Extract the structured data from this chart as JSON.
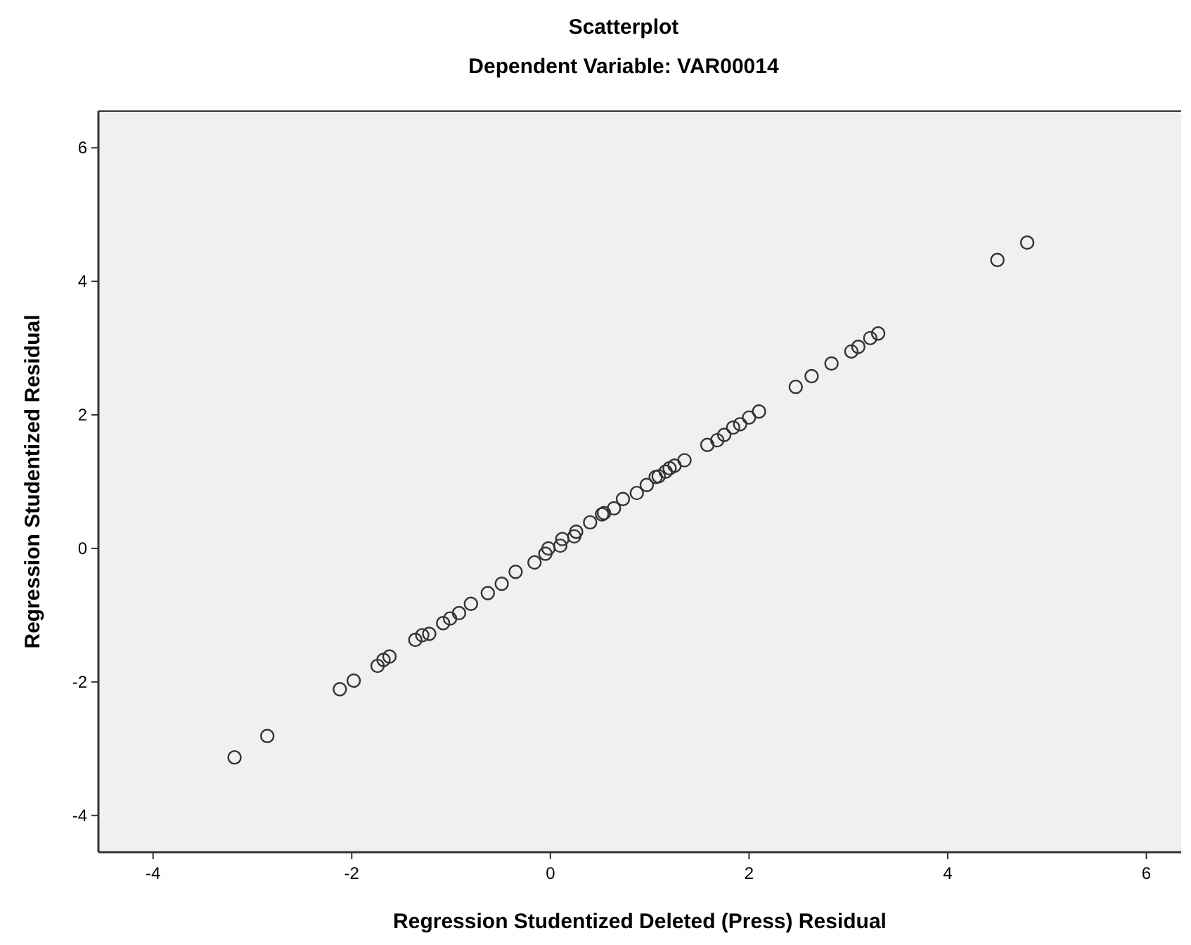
{
  "chart_data": {
    "type": "scatter",
    "title": "Scatterplot",
    "subtitle": "Dependent Variable: VAR00014",
    "xlabel": "Regression Studentized Deleted (Press) Residual",
    "ylabel": "Regression Studentized Residual",
    "xlim": [
      -4.55,
      6.35
    ],
    "ylim": [
      -4.55,
      6.55
    ],
    "xticks": [
      -4,
      -2,
      0,
      2,
      4,
      6
    ],
    "yticks": [
      -4,
      -2,
      0,
      2,
      4,
      6
    ],
    "grid": false,
    "marker": "circle",
    "series": [
      {
        "color": "#333333",
        "x": [
          -3.18,
          -2.85,
          -2.12,
          -1.98,
          -1.74,
          -1.68,
          -1.62,
          -1.36,
          -1.29,
          -1.22,
          -1.08,
          -1.01,
          -0.92,
          -0.8,
          -0.63,
          -0.49,
          -0.35,
          -0.16,
          -0.05,
          0.1,
          0.24,
          0.4,
          0.54,
          0.64,
          0.73,
          0.87,
          0.97,
          1.06,
          1.09,
          1.16,
          1.2,
          1.25,
          1.35,
          1.58,
          1.68,
          1.75,
          1.84,
          1.91,
          2.0,
          2.1,
          2.47,
          2.63,
          2.83,
          3.03,
          3.1,
          3.22,
          3.3,
          4.5,
          4.8,
          0.12,
          0.26,
          0.52,
          -0.02
        ],
        "values": [
          -3.13,
          -2.81,
          -2.11,
          -1.98,
          -1.76,
          -1.67,
          -1.62,
          -1.37,
          -1.3,
          -1.28,
          -1.12,
          -1.05,
          -0.97,
          -0.83,
          -0.67,
          -0.53,
          -0.35,
          -0.21,
          -0.08,
          0.04,
          0.18,
          0.39,
          0.53,
          0.6,
          0.74,
          0.83,
          0.95,
          1.07,
          1.08,
          1.15,
          1.2,
          1.24,
          1.32,
          1.55,
          1.62,
          1.7,
          1.81,
          1.86,
          1.96,
          2.05,
          2.42,
          2.58,
          2.77,
          2.95,
          3.02,
          3.15,
          3.22,
          4.32,
          4.58,
          0.14,
          0.25,
          0.51,
          0.0
        ]
      }
    ]
  }
}
